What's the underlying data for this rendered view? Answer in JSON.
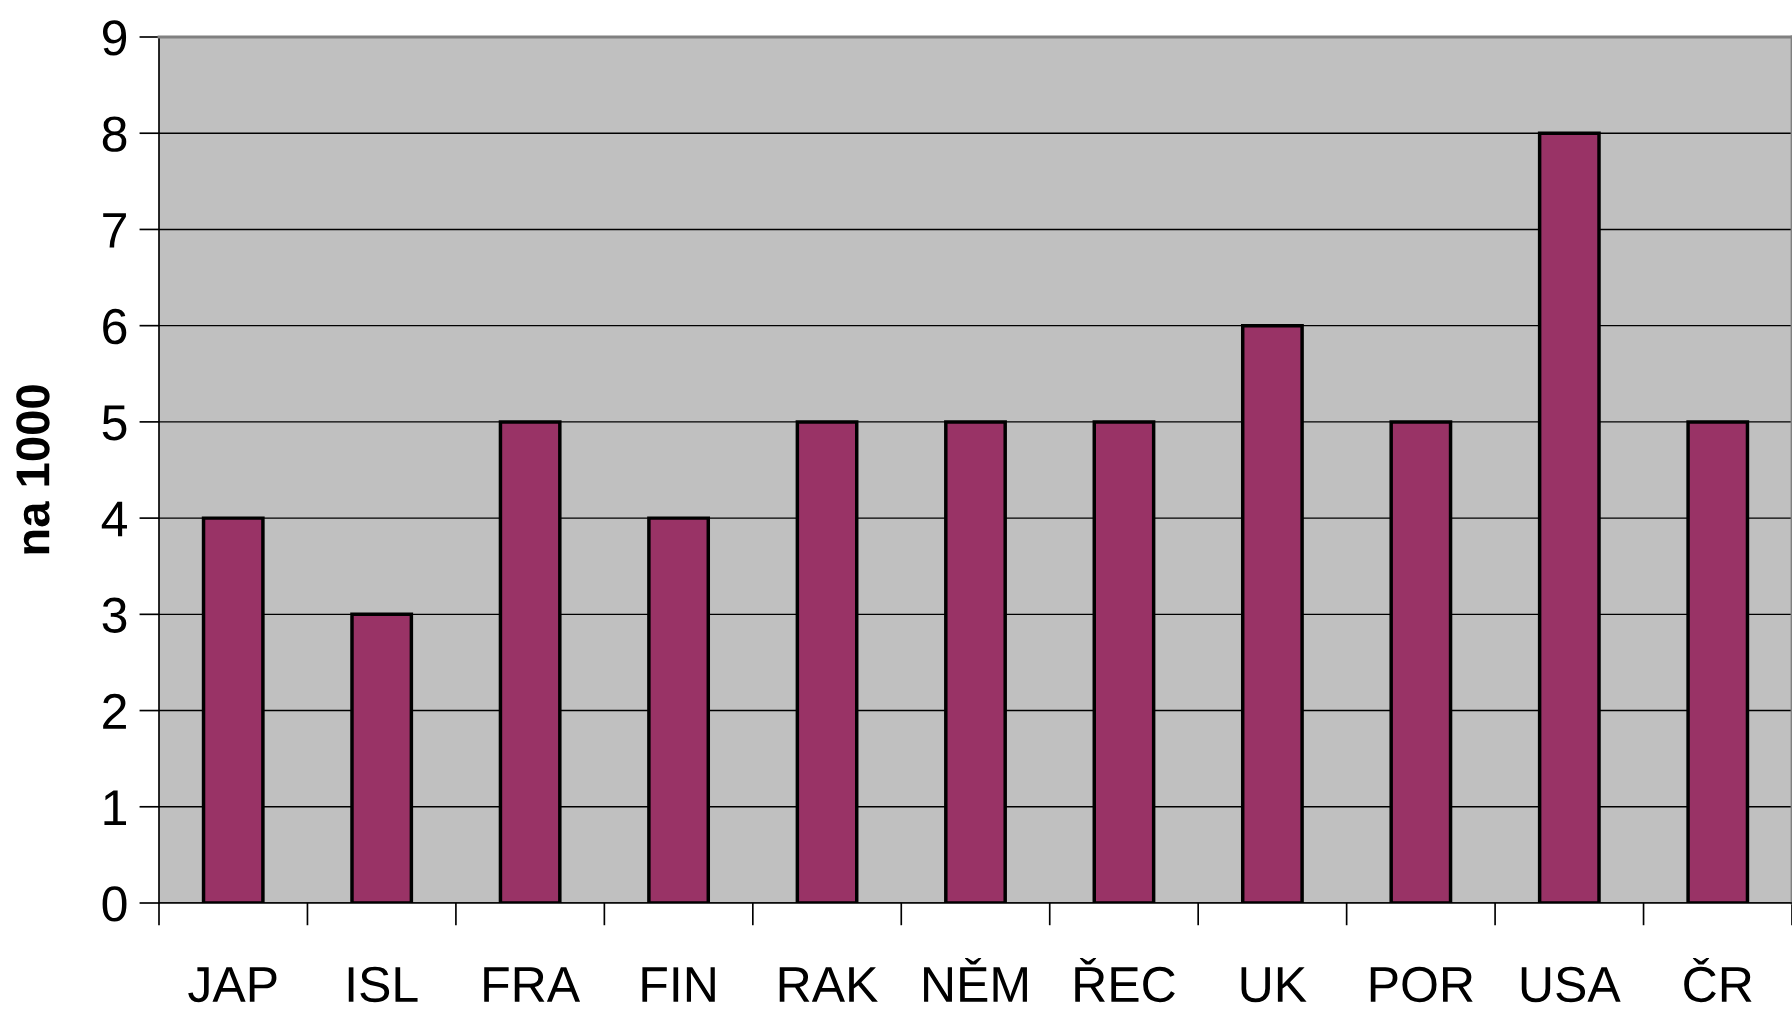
{
  "chart_data": {
    "type": "bar",
    "ylabel": "na 1000",
    "categories": [
      "JAP",
      "ISL",
      "FRA",
      "FIN",
      "RAK",
      "NĚM",
      "ŘEC",
      "UK",
      "POR",
      "USA",
      "ČR"
    ],
    "values": [
      4,
      3,
      5,
      4,
      5,
      5,
      5,
      6,
      5,
      8,
      5
    ],
    "color": "#993366",
    "ylim": [
      0,
      9
    ],
    "yticks": [
      0,
      1,
      2,
      3,
      4,
      5,
      6,
      7,
      8,
      9
    ],
    "grid": "y",
    "legend": false
  }
}
